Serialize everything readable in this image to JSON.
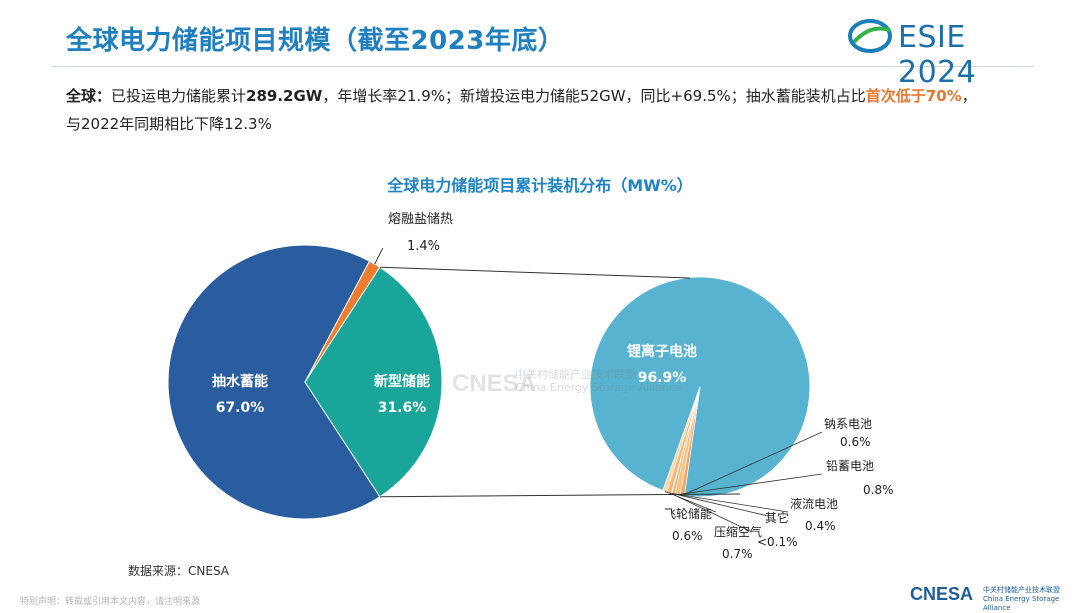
{
  "header": {
    "title": "全球电力储能项目规模（截至2023年底）",
    "logo_text": "ESIE 2024"
  },
  "summary": {
    "lead": "全球：",
    "t1": "已投运电力储能累计",
    "b1": "289.2GW",
    "t2": "，年增长率21.9%；新增投运电力储能52GW，同比+69.5%；抽水蓄能装机占比",
    "highlight": "首次低于70%",
    "t3": "，与2022年同期相比下降12.3%"
  },
  "chart_data": [
    {
      "type": "pie",
      "title": "全球电力储能项目累计装机分布（MW%）",
      "slices": [
        {
          "label": "抽水蓄能",
          "value": 67.0,
          "value_text": "67.0%",
          "color": "#2a5d9f"
        },
        {
          "label": "熔融盐储热",
          "value": 1.4,
          "value_text": "1.4%",
          "color": "#ee7d31"
        },
        {
          "label": "新型储能",
          "value": 31.6,
          "value_text": "31.6%",
          "color": "#1aa59a"
        }
      ]
    },
    {
      "type": "pie",
      "slices": [
        {
          "label": "锂离子电池",
          "value": 96.9,
          "value_text": "96.9%",
          "color": "#57b3cf"
        },
        {
          "label": "钠系电池",
          "value": 0.6,
          "value_text": "0.6%",
          "color": "#f0a35e"
        },
        {
          "label": "铅蓄电池",
          "value": 0.8,
          "value_text": "0.8%",
          "color": "#f5c48a"
        },
        {
          "label": "液流电池",
          "value": 0.4,
          "value_text": "0.4%",
          "color": "#e9b070"
        },
        {
          "label": "其它",
          "value": 0.1,
          "value_text": "<0.1%",
          "color": "#d8a060"
        },
        {
          "label": "压缩空气",
          "value": 0.7,
          "value_text": "0.7%",
          "color": "#f3b878"
        },
        {
          "label": "飞轮储能",
          "value": 0.6,
          "value_text": "0.6%",
          "color": "#fad7ad"
        }
      ]
    }
  ],
  "source": "数据来源：CNESA",
  "watermark": {
    "logo": "CNESA",
    "cn": "中关村储能产业技术联盟",
    "en": "China Energy Storage Alliance"
  },
  "disclaimer": "特别声明：转载或引用本文内容，请注明来源",
  "footer": {
    "logo": "CNESA",
    "cn": "中关村储能产业技术联盟",
    "en": "China Energy Storage Alliance"
  }
}
